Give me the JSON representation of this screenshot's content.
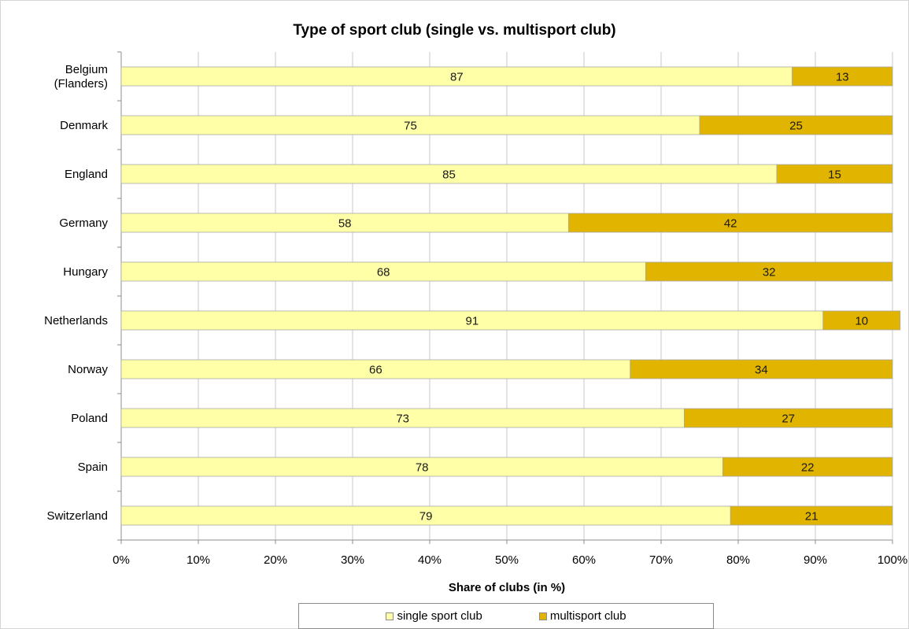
{
  "chart_data": {
    "type": "bar",
    "orientation": "horizontal",
    "stacked": true,
    "title": "Type of sport club (single vs. multisport club)",
    "xlabel": "Share of clubs (in %)",
    "ylabel": "",
    "xlim": [
      0,
      100
    ],
    "x_ticks": [
      "0%",
      "10%",
      "20%",
      "30%",
      "40%",
      "50%",
      "60%",
      "70%",
      "80%",
      "90%",
      "100%"
    ],
    "grid": true,
    "legend_position": "bottom",
    "categories": [
      [
        "Belgium",
        "(Flanders)"
      ],
      [
        "Denmark"
      ],
      [
        "England"
      ],
      [
        "Germany"
      ],
      [
        "Hungary"
      ],
      [
        "Netherlands"
      ],
      [
        "Norway"
      ],
      [
        "Poland"
      ],
      [
        "Spain"
      ],
      [
        "Switzerland"
      ]
    ],
    "series": [
      {
        "name": "single sport club",
        "color": "#FFFFA8",
        "values": [
          87,
          75,
          85,
          58,
          68,
          91,
          66,
          73,
          78,
          79
        ],
        "labels": [
          "87",
          "75",
          "85",
          "58",
          "68",
          "91",
          "66",
          "73",
          "78",
          "79"
        ]
      },
      {
        "name": "multisport club",
        "color": "#E1B400",
        "values": [
          13,
          25,
          15,
          42,
          32,
          10,
          34,
          27,
          22,
          21
        ],
        "labels": [
          "13",
          "25",
          "15",
          "42",
          "32",
          "10",
          "34",
          "27",
          "22",
          "21"
        ]
      }
    ]
  }
}
